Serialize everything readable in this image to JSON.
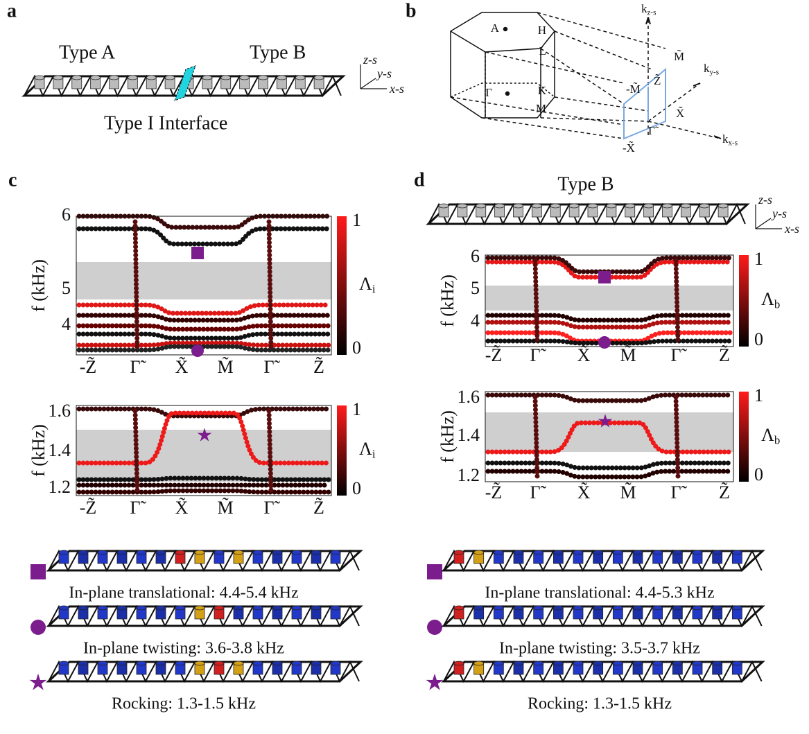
{
  "panel_labels": [
    "a",
    "b",
    "c",
    "d"
  ],
  "panel_a": {
    "left": "Type A",
    "right": "Type B",
    "interface": "Type I Interface",
    "axes": [
      "z-s",
      "y-s",
      "x-s"
    ]
  },
  "panel_b": {
    "points": [
      "A",
      "H",
      "L",
      "Γ",
      "K",
      "M"
    ],
    "k_axes": [
      {
        "base": "k",
        "sub": "z-s"
      },
      {
        "base": "k",
        "sub": "y-s"
      },
      {
        "base": "k",
        "sub": "x-s"
      }
    ],
    "surface_points": [
      "M̃",
      "Z̃",
      "-M̃",
      "X̃",
      "Γ̃",
      "-X̃"
    ]
  },
  "panel_c": {
    "plots": [
      {
        "y_label": "f (kHz)",
        "yticks": [
          "6",
          "5",
          "4"
        ],
        "colorbar": {
          "top": "1",
          "bottom": "0",
          "symbol": "Λ",
          "sub": "i"
        }
      },
      {
        "y_label": "f (kHz)",
        "yticks": [
          "1.6",
          "1.4",
          "1.2"
        ],
        "colorbar": {
          "top": "1",
          "bottom": "0",
          "symbol": "Λ",
          "sub": "i"
        }
      }
    ],
    "x_labels": [
      "-Z̃",
      "Γ̃",
      "X̃",
      "M̃",
      "Γ̃",
      "Z̃"
    ],
    "modes": [
      "In-plane translational: 4.4-5.4 kHz",
      "In-plane twisting: 3.6-3.8 kHz",
      "Rocking: 1.3-1.5 kHz"
    ]
  },
  "panel_d": {
    "title": "Type B",
    "axes": [
      "z-s",
      "y-s",
      "x-s"
    ],
    "plots": [
      {
        "y_label": "f (kHz)",
        "yticks": [
          "6",
          "5",
          "4"
        ],
        "colorbar": {
          "top": "1",
          "bottom": "0",
          "symbol": "Λ",
          "sub": "b"
        }
      },
      {
        "y_label": "f (kHz)",
        "yticks": [
          "1.6",
          "1.4",
          "1.2"
        ],
        "colorbar": {
          "top": "1",
          "bottom": "0",
          "symbol": "Λ",
          "sub": "b"
        }
      }
    ],
    "x_labels": [
      "-Z̃",
      "Γ̃",
      "X̃",
      "M̃",
      "Γ̃",
      "Z̃"
    ],
    "modes": [
      "In-plane translational: 4.4-5.3 kHz",
      "In-plane twisting: 3.5-3.7 kHz",
      "Rocking: 1.3-1.5 kHz"
    ]
  }
}
